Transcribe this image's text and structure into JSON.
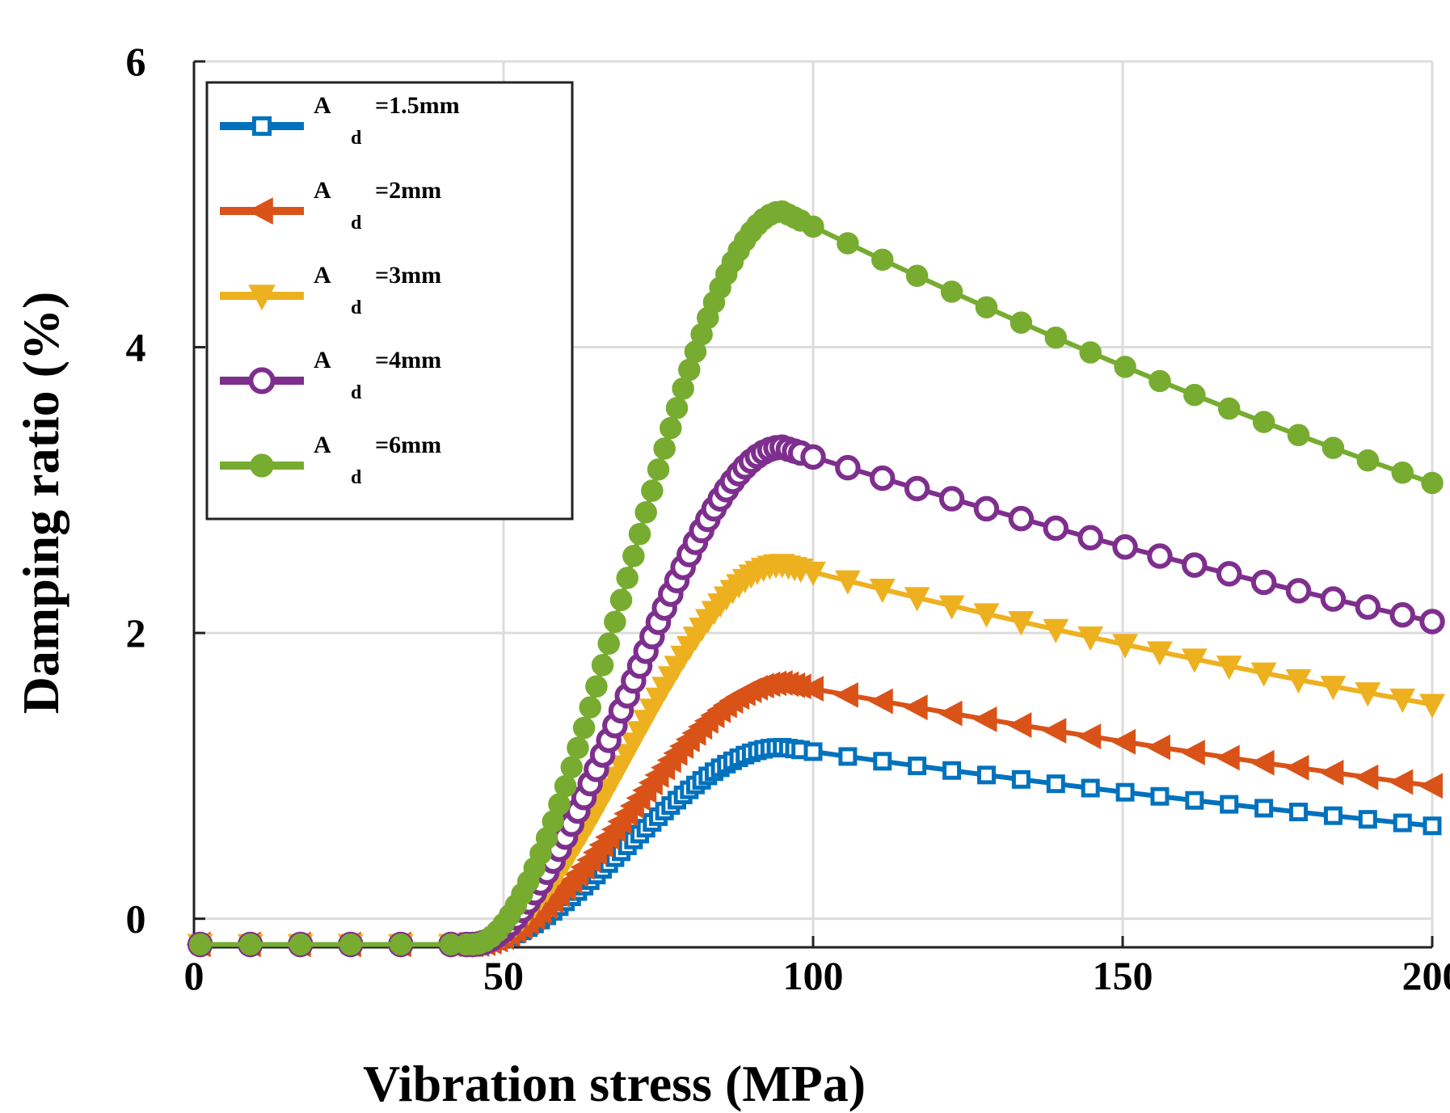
{
  "chart_data": {
    "type": "line",
    "title": "",
    "xlabel": "Vibration stress (MPa)",
    "ylabel": "Damping ratio (%)",
    "xlim": [
      0,
      200
    ],
    "ylim": [
      -0.2,
      6
    ],
    "xticks": [
      0,
      50,
      100,
      150,
      200
    ],
    "xtick_labels": [
      "0",
      "50",
      "100",
      "150",
      "200"
    ],
    "yticks": [
      0,
      2,
      4,
      6
    ],
    "ytick_labels": [
      "0",
      "2",
      "4",
      "6"
    ],
    "grid": true,
    "legend_position": "top-left",
    "series": [
      {
        "name": "Ad=1.5mm",
        "label_main": "A",
        "label_sub": "d",
        "label_rest": "=1.5mm",
        "color": "#0072BD",
        "marker": "square",
        "peak": 1.2,
        "end": 0.65
      },
      {
        "name": "Ad=2mm",
        "label_main": "A",
        "label_sub": "d",
        "label_rest": "=2mm",
        "color": "#D95319",
        "marker": "triangle-left",
        "peak": 1.65,
        "end": 0.93
      },
      {
        "name": "Ad=3mm",
        "label_main": "A",
        "label_sub": "d",
        "label_rest": "=3mm",
        "color": "#EDB120",
        "marker": "triangle-down",
        "peak": 2.48,
        "end": 1.5
      },
      {
        "name": "Ad=4mm",
        "label_main": "A",
        "label_sub": "d",
        "label_rest": "=4mm",
        "color": "#7E2F8E",
        "marker": "circle-open",
        "peak": 3.3,
        "end": 2.08
      },
      {
        "name": "Ad=6mm",
        "label_main": "A",
        "label_sub": "d",
        "label_rest": "=6mm",
        "color": "#77AC30",
        "marker": "circle-filled",
        "peak": 4.95,
        "end": 3.05
      }
    ],
    "curve_shape": {
      "flat_value": -0.18,
      "onset_x": 45,
      "peak_x": 95,
      "end_x": 200
    }
  }
}
